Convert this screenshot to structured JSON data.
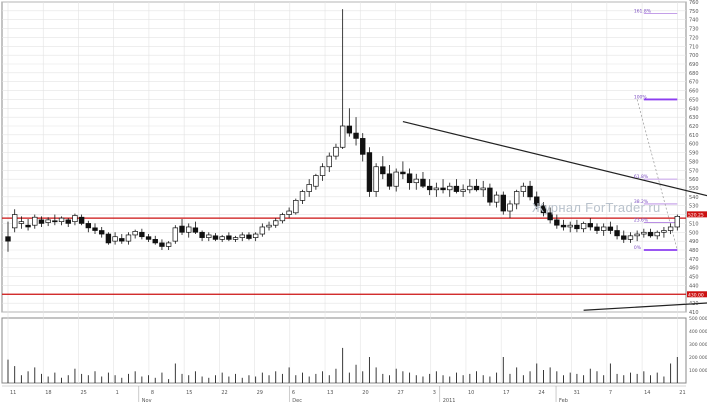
{
  "watermark": "Журнал ForTrader.ru",
  "chart_data": {
    "type": "candlestick",
    "price_axis": {
      "min": 410,
      "max": 760,
      "step": 10,
      "tick_labels": [
        "760",
        "750",
        "740",
        "730",
        "720",
        "710",
        "700",
        "690",
        "680",
        "670",
        "660",
        "650",
        "640",
        "630",
        "620",
        "610",
        "600",
        "590",
        "580",
        "570",
        "560",
        "550",
        "540",
        "530",
        "520",
        "510",
        "500",
        "490",
        "480",
        "470",
        "460",
        "450",
        "440",
        "430",
        "420",
        "410"
      ],
      "highlight_labels": [
        "520.25",
        "430.00"
      ],
      "grid": true
    },
    "volume_axis": {
      "max": 500000,
      "tick_labels": [
        "500 000",
        "400 000",
        "300 000",
        "200 000",
        "100 000"
      ]
    },
    "x_axis": {
      "day_labels": [
        "11",
        "18",
        "25",
        "1",
        "8",
        "15",
        "22",
        "29",
        "6",
        "13",
        "20",
        "27",
        "3",
        "10",
        "17",
        "24",
        "31",
        "7",
        "14",
        "21"
      ],
      "month_labels": [
        "Nov",
        "Dec",
        "2011",
        "Feb"
      ]
    },
    "fibonacci": {
      "levels": [
        {
          "label": "161.8%",
          "price": 747,
          "color": "#b07fe0"
        },
        {
          "label": "100%",
          "price": 650,
          "color": "#8c3ef0"
        },
        {
          "label": "61.8%",
          "price": 560,
          "color": "#b07fe0"
        },
        {
          "label": "38.2%",
          "price": 532,
          "color": "#b07fe0"
        },
        {
          "label": "23.6%",
          "price": 511,
          "color": "#b07fe0"
        },
        {
          "label": "0%",
          "price": 480,
          "color": "#8c3ef0"
        }
      ]
    },
    "horizontal_lines": [
      {
        "price": 516,
        "color": "#cc1111"
      },
      {
        "price": 430,
        "color": "#cc1111"
      }
    ],
    "trendlines": [
      {
        "from": {
          "i": 59,
          "p": 625
        },
        "to": {
          "i": 128,
          "p": 498
        },
        "color": "#222222"
      },
      {
        "from": {
          "i": 86,
          "p": 412
        },
        "to": {
          "i": 129,
          "p": 431
        },
        "color": "#222222"
      }
    ],
    "candles": [
      [
        490,
        512,
        478,
        495,
        false
      ],
      [
        505,
        526,
        500,
        520,
        true
      ],
      [
        510,
        518,
        504,
        512,
        true
      ],
      [
        508,
        515,
        502,
        506,
        false
      ],
      [
        508,
        520,
        504,
        517,
        true
      ],
      [
        514,
        518,
        506,
        510,
        false
      ],
      [
        511,
        517,
        507,
        514,
        true
      ],
      [
        513,
        520,
        508,
        512,
        false
      ],
      [
        512,
        518,
        508,
        516,
        true
      ],
      [
        514,
        516,
        506,
        510,
        false
      ],
      [
        512,
        521,
        508,
        519,
        true
      ],
      [
        517,
        520,
        508,
        510,
        false
      ],
      [
        510,
        513,
        500,
        505,
        false
      ],
      [
        505,
        510,
        498,
        502,
        false
      ],
      [
        502,
        506,
        494,
        498,
        false
      ],
      [
        498,
        500,
        486,
        488,
        false
      ],
      [
        490,
        500,
        486,
        495,
        true
      ],
      [
        493,
        498,
        487,
        490,
        false
      ],
      [
        490,
        500,
        486,
        497,
        true
      ],
      [
        497,
        503,
        493,
        501,
        true
      ],
      [
        500,
        504,
        492,
        495,
        false
      ],
      [
        495,
        498,
        489,
        492,
        false
      ],
      [
        492,
        496,
        486,
        488,
        false
      ],
      [
        488,
        492,
        480,
        484,
        false
      ],
      [
        484,
        490,
        480,
        488,
        true
      ],
      [
        490,
        508,
        487,
        505,
        true
      ],
      [
        507,
        515,
        497,
        500,
        false
      ],
      [
        500,
        510,
        494,
        506,
        true
      ],
      [
        505,
        512,
        498,
        500,
        false
      ],
      [
        500,
        502,
        490,
        494,
        false
      ],
      [
        494,
        500,
        490,
        497,
        true
      ],
      [
        496,
        499,
        490,
        492,
        false
      ],
      [
        492,
        497,
        489,
        495,
        true
      ],
      [
        496,
        500,
        490,
        492,
        false
      ],
      [
        492,
        496,
        489,
        494,
        true
      ],
      [
        494,
        500,
        490,
        497,
        true
      ],
      [
        497,
        500,
        491,
        493,
        false
      ],
      [
        494,
        500,
        490,
        498,
        true
      ],
      [
        498,
        510,
        495,
        506,
        true
      ],
      [
        506,
        512,
        502,
        508,
        true
      ],
      [
        508,
        516,
        505,
        513,
        true
      ],
      [
        513,
        522,
        510,
        520,
        true
      ],
      [
        520,
        528,
        516,
        524,
        true
      ],
      [
        522,
        538,
        520,
        536,
        true
      ],
      [
        536,
        548,
        532,
        546,
        true
      ],
      [
        546,
        560,
        540,
        554,
        true
      ],
      [
        552,
        566,
        548,
        564,
        true
      ],
      [
        564,
        578,
        558,
        574,
        true
      ],
      [
        574,
        590,
        568,
        586,
        true
      ],
      [
        586,
        600,
        582,
        596,
        true
      ],
      [
        596,
        752,
        594,
        620,
        true
      ],
      [
        620,
        640,
        608,
        612,
        false
      ],
      [
        612,
        630,
        598,
        606,
        false
      ],
      [
        606,
        612,
        580,
        588,
        false
      ],
      [
        590,
        596,
        540,
        546,
        false
      ],
      [
        546,
        578,
        540,
        574,
        true
      ],
      [
        574,
        586,
        560,
        566,
        false
      ],
      [
        566,
        576,
        548,
        552,
        false
      ],
      [
        552,
        572,
        546,
        568,
        true
      ],
      [
        568,
        580,
        560,
        566,
        false
      ],
      [
        566,
        572,
        548,
        556,
        false
      ],
      [
        556,
        566,
        548,
        560,
        true
      ],
      [
        560,
        568,
        550,
        552,
        false
      ],
      [
        552,
        560,
        542,
        548,
        false
      ],
      [
        548,
        556,
        540,
        550,
        true
      ],
      [
        550,
        560,
        544,
        548,
        false
      ],
      [
        548,
        556,
        540,
        552,
        true
      ],
      [
        552,
        560,
        544,
        546,
        false
      ],
      [
        546,
        554,
        540,
        548,
        true
      ],
      [
        548,
        560,
        544,
        552,
        true
      ],
      [
        552,
        560,
        546,
        548,
        false
      ],
      [
        548,
        558,
        540,
        550,
        true
      ],
      [
        550,
        555,
        530,
        534,
        false
      ],
      [
        534,
        546,
        528,
        542,
        true
      ],
      [
        542,
        546,
        520,
        524,
        false
      ],
      [
        524,
        536,
        516,
        532,
        true
      ],
      [
        532,
        548,
        526,
        546,
        true
      ],
      [
        546,
        556,
        540,
        552,
        true
      ],
      [
        552,
        558,
        536,
        540,
        false
      ],
      [
        540,
        546,
        526,
        530,
        false
      ],
      [
        530,
        534,
        518,
        522,
        false
      ],
      [
        522,
        528,
        510,
        514,
        false
      ],
      [
        514,
        520,
        504,
        508,
        false
      ],
      [
        508,
        514,
        502,
        506,
        false
      ],
      [
        506,
        512,
        500,
        508,
        true
      ],
      [
        508,
        514,
        500,
        504,
        false
      ],
      [
        504,
        512,
        500,
        510,
        true
      ],
      [
        510,
        516,
        502,
        506,
        false
      ],
      [
        506,
        510,
        498,
        502,
        false
      ],
      [
        502,
        510,
        496,
        506,
        true
      ],
      [
        506,
        512,
        498,
        502,
        false
      ],
      [
        502,
        508,
        492,
        496,
        false
      ],
      [
        496,
        502,
        488,
        492,
        false
      ],
      [
        492,
        500,
        488,
        496,
        true
      ],
      [
        496,
        502,
        490,
        498,
        true
      ],
      [
        498,
        504,
        494,
        500,
        true
      ],
      [
        500,
        504,
        494,
        496,
        false
      ],
      [
        496,
        502,
        492,
        500,
        true
      ],
      [
        500,
        506,
        494,
        502,
        true
      ],
      [
        502,
        510,
        498,
        506,
        true
      ],
      [
        506,
        520,
        502,
        518,
        true
      ]
    ],
    "volumes": [
      180000,
      130000,
      60000,
      90000,
      120000,
      70000,
      50000,
      80000,
      40000,
      60000,
      110000,
      70000,
      60000,
      90000,
      50000,
      80000,
      60000,
      40000,
      70000,
      90000,
      50000,
      60000,
      40000,
      80000,
      30000,
      150000,
      70000,
      60000,
      90000,
      50000,
      40000,
      60000,
      80000,
      50000,
      70000,
      40000,
      60000,
      50000,
      80000,
      60000,
      90000,
      70000,
      120000,
      60000,
      80000,
      50000,
      70000,
      90000,
      60000,
      110000,
      270000,
      80000,
      140000,
      90000,
      200000,
      120000,
      70000,
      60000,
      110000,
      90000,
      80000,
      60000,
      50000,
      70000,
      90000,
      60000,
      50000,
      80000,
      60000,
      70000,
      90000,
      60000,
      50000,
      80000,
      200000,
      70000,
      120000,
      60000,
      90000,
      150000,
      100000,
      120000,
      90000,
      60000,
      80000,
      70000,
      60000,
      110000,
      90000,
      60000,
      150000,
      70000,
      60000,
      80000,
      70000,
      90000,
      60000,
      80000,
      50000,
      150000,
      200000
    ]
  }
}
